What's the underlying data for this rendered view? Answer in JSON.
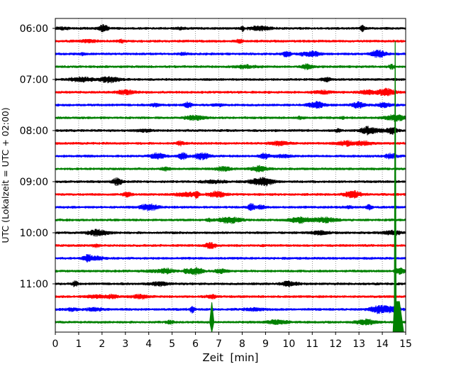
{
  "chart_data": {
    "type": "line",
    "chart_kind": "helicorder",
    "xlabel": "Zeit  [min]",
    "ylabel": "UTC (Lokalzeit = UTC + 02:00)",
    "xlim": [
      0,
      15
    ],
    "x_ticks": [
      "0",
      "1",
      "2",
      "3",
      "4",
      "5",
      "6",
      "7",
      "8",
      "9",
      "10",
      "11",
      "12",
      "13",
      "14",
      "15"
    ],
    "y_tick_labels": [
      "06:00",
      "07:00",
      "08:00",
      "09:00",
      "10:00",
      "11:00"
    ],
    "trace_minutes": 15,
    "trace_count": 24,
    "start_time": "06:00",
    "grid": "vertical dotted lines at each minute",
    "series_colors": [
      "#000000",
      "#ff0000",
      "#0000ff",
      "#008000"
    ],
    "events": [
      {
        "name": "large event",
        "start_trace": "06:15",
        "x_minute": 14.55,
        "color": "#008000"
      },
      {
        "name": "local event",
        "trace": "11:45",
        "x_minute": 6.7,
        "color": "#008000"
      }
    ]
  }
}
